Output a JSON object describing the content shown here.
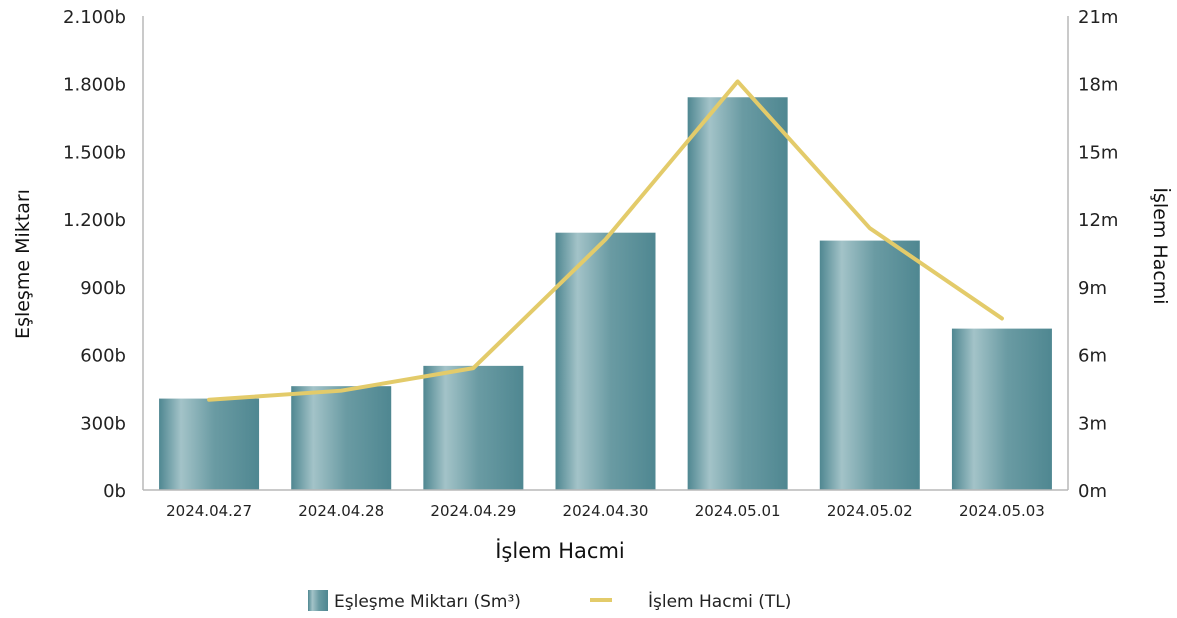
{
  "chart_data": {
    "type": "bar",
    "categories": [
      "2024.04.27",
      "2024.04.28",
      "2024.04.29",
      "2024.04.30",
      "2024.05.01",
      "2024.05.02",
      "2024.05.03"
    ],
    "series": [
      {
        "name": "Eşleşme Miktarı (Sm³)",
        "type": "bar",
        "axis": "left",
        "values": [
          405,
          460,
          550,
          1140,
          1740,
          1105,
          715
        ]
      },
      {
        "name": "İşlem Hacmi (TL)",
        "type": "line",
        "axis": "right",
        "values": [
          4.0,
          4.4,
          5.4,
          11.1,
          18.1,
          11.6,
          7.6
        ]
      }
    ],
    "xlabel": "İşlem Hacmi",
    "ylabel_left": "Eşleşme Miktarı",
    "ylabel_right": "İşlem Hacmi",
    "ylim_left": [
      0,
      2100
    ],
    "ylim_right": [
      0,
      21
    ],
    "y_ticks_left": [
      "0b",
      "300b",
      "600b",
      "900b",
      "1.200b",
      "1.500b",
      "1.800b",
      "2.100b"
    ],
    "y_ticks_right": [
      "0m",
      "3m",
      "6m",
      "9m",
      "12m",
      "15m",
      "18m",
      "21m"
    ],
    "grid": false,
    "legend_position": "bottom-center",
    "colors": {
      "bar_dark": "#4f8791",
      "bar_light": "#a3c3c8",
      "line": "#e3cb6a",
      "axis": "#b8b8b8"
    }
  }
}
